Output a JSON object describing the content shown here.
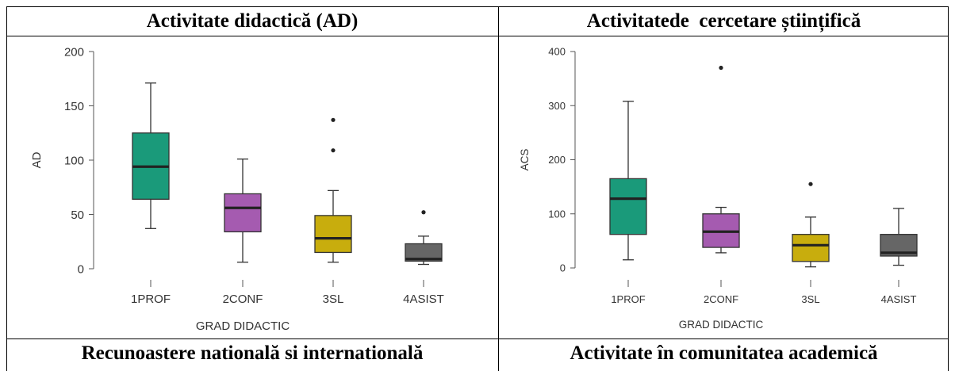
{
  "table": {
    "headers": [
      "Activitate didactică (AD)",
      "Activitatede  cercetare științifică",
      "Recunoastere natională si internatională",
      "Activitate în comunitatea academică"
    ]
  },
  "chart_data": [
    {
      "type": "boxplot",
      "xlabel": "GRAD DIDACTIC",
      "ylabel": "AD",
      "ylim": [
        0,
        200
      ],
      "yticks": [
        0,
        50,
        100,
        150,
        200
      ],
      "categories": [
        "1PROF",
        "2CONF",
        "3SL",
        "4ASIST"
      ],
      "colors": [
        "#1a9a7a",
        "#a55bb0",
        "#c8ad0d",
        "#666666"
      ],
      "boxes": [
        {
          "whisker_low": 37,
          "q1": 64,
          "median": 94,
          "q3": 125,
          "whisker_high": 171,
          "outliers": []
        },
        {
          "whisker_low": 6,
          "q1": 34,
          "median": 56,
          "q3": 69,
          "whisker_high": 101,
          "outliers": []
        },
        {
          "whisker_low": 6,
          "q1": 15,
          "median": 28,
          "q3": 49,
          "whisker_high": 72,
          "outliers": [
            109,
            137
          ]
        },
        {
          "whisker_low": 4,
          "q1": 7,
          "median": 9,
          "q3": 23,
          "whisker_high": 30,
          "outliers": [
            52
          ]
        }
      ]
    },
    {
      "type": "boxplot",
      "xlabel": "GRAD DIDACTIC",
      "ylabel": "ACS",
      "ylim": [
        0,
        400
      ],
      "yticks": [
        0,
        100,
        200,
        300,
        400
      ],
      "categories": [
        "1PROF",
        "2CONF",
        "3SL",
        "4ASIST"
      ],
      "colors": [
        "#1a9a7a",
        "#a55bb0",
        "#c8ad0d",
        "#666666"
      ],
      "boxes": [
        {
          "whisker_low": 15,
          "q1": 62,
          "median": 128,
          "q3": 165,
          "whisker_high": 308,
          "outliers": []
        },
        {
          "whisker_low": 28,
          "q1": 38,
          "median": 67,
          "q3": 100,
          "whisker_high": 112,
          "outliers": [
            370
          ]
        },
        {
          "whisker_low": 2,
          "q1": 12,
          "median": 42,
          "q3": 62,
          "whisker_high": 94,
          "outliers": [
            155
          ]
        },
        {
          "whisker_low": 5,
          "q1": 22,
          "median": 28,
          "q3": 62,
          "whisker_high": 110,
          "outliers": []
        }
      ]
    }
  ]
}
